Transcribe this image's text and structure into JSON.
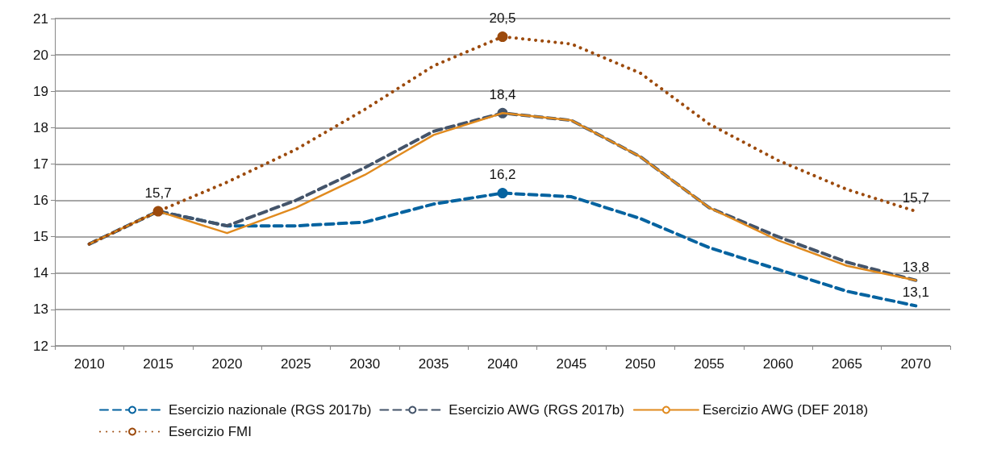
{
  "chart_data": {
    "type": "line",
    "categories": [
      "2010",
      "2015",
      "2020",
      "2025",
      "2030",
      "2035",
      "2040",
      "2045",
      "2050",
      "2055",
      "2060",
      "2065",
      "2070"
    ],
    "ylim": [
      12,
      21
    ],
    "yticks": [
      12,
      13,
      14,
      15,
      16,
      17,
      18,
      19,
      20,
      21
    ],
    "grid": "y",
    "legend": "bottom",
    "series": [
      {
        "name": "Esercizio nazionale (RGS 2017b)",
        "color": "#0563a0",
        "line_style": "dashed",
        "values": [
          14.8,
          15.7,
          15.3,
          15.3,
          15.4,
          15.9,
          16.2,
          16.1,
          15.5,
          14.7,
          14.1,
          13.5,
          13.1
        ],
        "value_labels": [
          null,
          null,
          null,
          null,
          null,
          null,
          "16,2",
          null,
          null,
          null,
          null,
          null,
          "13,1"
        ]
      },
      {
        "name": "Esercizio AWG (RGS 2017b)",
        "color": "#44546a",
        "line_style": "dashed",
        "values": [
          14.8,
          15.7,
          15.3,
          16.0,
          16.9,
          17.9,
          18.4,
          18.2,
          17.2,
          15.8,
          15.0,
          14.3,
          13.8
        ],
        "value_labels": [
          null,
          null,
          null,
          null,
          null,
          null,
          "18,4",
          null,
          null,
          null,
          null,
          null,
          "13,8"
        ]
      },
      {
        "name": "Esercizio AWG (DEF 2018)",
        "color": "#e08a1e",
        "line_style": "solid",
        "values": [
          14.8,
          15.7,
          15.1,
          15.8,
          16.7,
          17.8,
          18.4,
          18.2,
          17.2,
          15.8,
          14.9,
          14.2,
          13.8
        ]
      },
      {
        "name": "Esercizio FMI",
        "color": "#9c4a0c",
        "line_style": "dotted",
        "values": [
          14.8,
          15.7,
          16.5,
          17.4,
          18.5,
          19.7,
          20.5,
          20.3,
          19.5,
          18.1,
          17.1,
          16.3,
          15.7
        ],
        "value_labels": [
          null,
          "15,7",
          null,
          null,
          null,
          null,
          "20,5",
          null,
          null,
          null,
          null,
          null,
          "15,7"
        ]
      }
    ]
  }
}
